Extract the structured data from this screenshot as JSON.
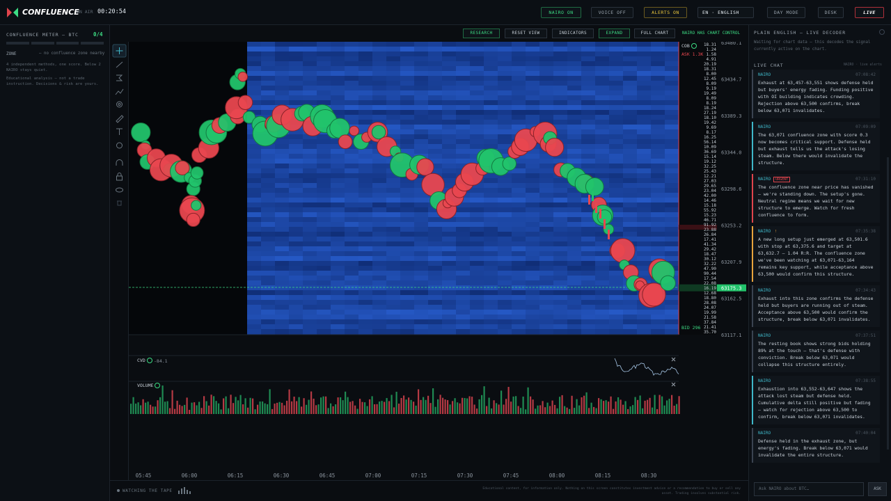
{
  "topbar": {
    "logo": "CONFLUENCE",
    "on_air_label": "ON AIR",
    "clock": "00:20:54",
    "buttons": [
      "NAIRO ON",
      "VOICE OFF",
      "ALERTS ON",
      "EN · ENGLISH",
      "DAY MODE",
      "DESK",
      "LIVE"
    ]
  },
  "left_panel": {
    "title": "CONFLUENCE METER — BTC",
    "score": "0/4",
    "zone_label": "ZONE",
    "zone_value": "— no confluence zone nearby",
    "note": "4 independent methods, one score. Below 2 NAIRO stays quiet.",
    "disclaimer": "Educational analysis — not a trade instruction. Decisions & risk are yours."
  },
  "toolbar": {
    "buttons": [
      "RESEARCH",
      "RESET VIEW",
      "INDICATORS",
      "EXPAND",
      "FULL CHART"
    ],
    "status": "NAIRO HAS CHART CONTROL"
  },
  "chart": {
    "price_labels": [
      "63480.1",
      "63434.7",
      "63389.3",
      "63344.0",
      "63298.6",
      "63253.2",
      "63207.9",
      "63162.5",
      "63117.1"
    ],
    "current_price": "63175.3",
    "cob_label": "COB",
    "ask_label": "ASK 1.3K",
    "bid_label": "BID 296",
    "order_book": [
      "18.31",
      "1.24",
      "1.58",
      "4.91",
      "20.19",
      "18.31",
      "8.00",
      "12.45",
      "8.09",
      "9.19",
      "19.49",
      "8.09",
      "8.19",
      "18.24",
      "27.19",
      "18.10",
      "19.42",
      "9.69",
      "8.17",
      "16.25",
      "56.14",
      "10.09",
      "36.69",
      "15.14",
      "19.12",
      "32.25",
      "25.43",
      "12.21",
      "27.03",
      "29.65",
      "23.04",
      "42.00",
      "14.46",
      "15.18",
      "55.92",
      "15.23",
      "46.71",
      "91.92",
      "23.88",
      "26.84",
      "17.41",
      "41.34",
      "29.42",
      "18.47",
      "30.12",
      "32.22",
      "47.90",
      "90.44",
      "17.54",
      "22.08",
      "16.19",
      "12.68",
      "18.80",
      "28.08",
      "24.07",
      "19.99",
      "21.58",
      "37.84",
      "21.41",
      "35.70"
    ],
    "cvd_label": "CVD",
    "cvd_value": "-84.1",
    "volume_label": "VOLUME",
    "time_labels": [
      "05:45",
      "06:00",
      "06:15",
      "06:30",
      "06:45",
      "07:00",
      "07:15",
      "07:30",
      "07:45",
      "08:00",
      "08:15",
      "08:30"
    ]
  },
  "footer": {
    "status": "WATCHING THE TAPE",
    "disclaimer": "Educational content, for information only. Nothing on this screen constitutes investment advice or a recommendation to buy or sell any asset. Trading involves substantial risk."
  },
  "right_panel": {
    "title": "PLAIN ENGLISH — LIVE DECODER",
    "waiting": "Waiting for chart data — this decodes the signal currently active on the chart.",
    "chat_title": "LIVE CHAT",
    "chat_subtitle": "NAIRO · live alerts",
    "messages": [
      {
        "author": "NAIRO",
        "time": "07:08:42",
        "accent": "#3a4350",
        "text": "Exhaust at 63,457-63,551 shows defense held but buyers' energy fading. Funding positive with OI building indicates crowding. Rejection above 63,500 confirms, break below 63,071 invalidates."
      },
      {
        "author": "NAIRO",
        "time": "07:09:09",
        "accent": "#3fb8c9",
        "text": "The 63,071 confluence zone with score 0.3 now becomes critical support. Defense held but exhaust tells us the attack's losing steam. Below there would invalidate the structure."
      },
      {
        "author": "NAIRO",
        "time": "07:31:10",
        "accent": "#e0444c",
        "badge": "URGENT",
        "text": "The confluence zone near price has vanished — we're standing down. The setup's gone. Neutral regime means we wait for new structure to emerge. Watch for fresh confluence to form."
      },
      {
        "author": "NAIRO",
        "time": "07:35:38",
        "accent": "#e8a33c",
        "badge": "!",
        "text": "A new long setup just emerged at 63,501.6 with stop at 63,375.6 and target at 63,632.7 — 1.04 R:R. The confluence zone we've been watching at 63,071-63,164 remains key support, while acceptance above 63,500 would confirm this structure."
      },
      {
        "author": "NAIRO",
        "time": "07:34:43",
        "accent": "#3a4350",
        "text": "Exhaust into this zone confirms the defense held but buyers are running out of steam. Acceptance above 63,500 would confirm the structure, break below 63,071 invalidates."
      },
      {
        "author": "NAIRO",
        "time": "07:37:51",
        "accent": "#3a4350",
        "text": "The resting book shows strong bids holding 89% at the touch — that's defense with conviction. Break below 63,071 would collapse this structure entirely."
      },
      {
        "author": "NAIRO",
        "time": "07:38:55",
        "accent": "#3fb8c9",
        "text": "Exhaustion into 63,552-63,647 shows the attack lost steam but defense held. Cumulative delta still positive but fading — watch for rejection above 63,500 to confirm, break below 63,071 invalidates."
      },
      {
        "author": "NAIRO",
        "time": "07:40:04",
        "accent": "#3a4350",
        "text": "Defense held in the exhaust zone, but energy's fading. Break below 63,071 would invalidate the entire structure."
      }
    ],
    "input_placeholder": "Ask NAIRO about BTC…",
    "ask_button": "ASK"
  }
}
